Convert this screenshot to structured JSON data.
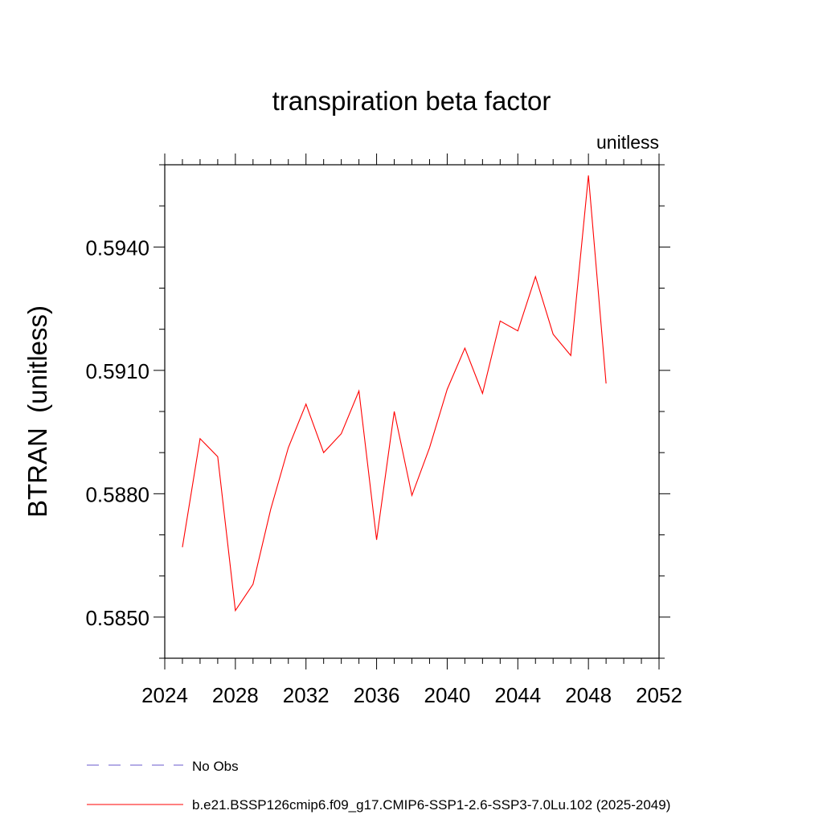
{
  "chart_data": {
    "type": "line",
    "title": "transpiration beta factor",
    "units_label": "unitless",
    "ylabel": "BTRAN  (unitless)",
    "xlabel": "",
    "xlim": [
      2024,
      2052
    ],
    "ylim": [
      0.584,
      0.596
    ],
    "x_ticks": [
      2024,
      2028,
      2032,
      2036,
      2040,
      2044,
      2048,
      2052
    ],
    "x_tick_labels": [
      "2024",
      "2028",
      "2032",
      "2036",
      "2040",
      "2044",
      "2048",
      "2052"
    ],
    "y_ticks": [
      0.585,
      0.588,
      0.591,
      0.594
    ],
    "y_tick_labels": [
      "0.5850",
      "0.5880",
      "0.5910",
      "0.5940"
    ],
    "grid": false,
    "legend_position": "bottom",
    "legend": [
      {
        "label": "No Obs",
        "color": "#6a5acd",
        "style": "dashed"
      },
      {
        "label": "b.e21.BSSP126cmip6.f09_g17.CMIP6-SSP1-2.6-SSP3-7.0Lu.102 (2025-2049)",
        "color": "#ff0000",
        "style": "solid"
      }
    ],
    "series": [
      {
        "color": "#ff0000",
        "x": [
          2025,
          2026,
          2027,
          2028,
          2029,
          2030,
          2031,
          2032,
          2033,
          2034,
          2035,
          2036,
          2037,
          2038,
          2039,
          2040,
          2041,
          2042,
          2043,
          2044,
          2045,
          2046,
          2047,
          2048,
          2049
        ],
        "values": [
          0.5867,
          0.58934,
          0.5889,
          0.58516,
          0.5858,
          0.58762,
          0.58912,
          0.59018,
          0.589,
          0.58946,
          0.5905,
          0.58688,
          0.59,
          0.58796,
          0.58912,
          0.59054,
          0.59154,
          0.59044,
          0.5922,
          0.59196,
          0.59328,
          0.59188,
          0.59136,
          0.59574,
          0.59068
        ]
      }
    ]
  }
}
